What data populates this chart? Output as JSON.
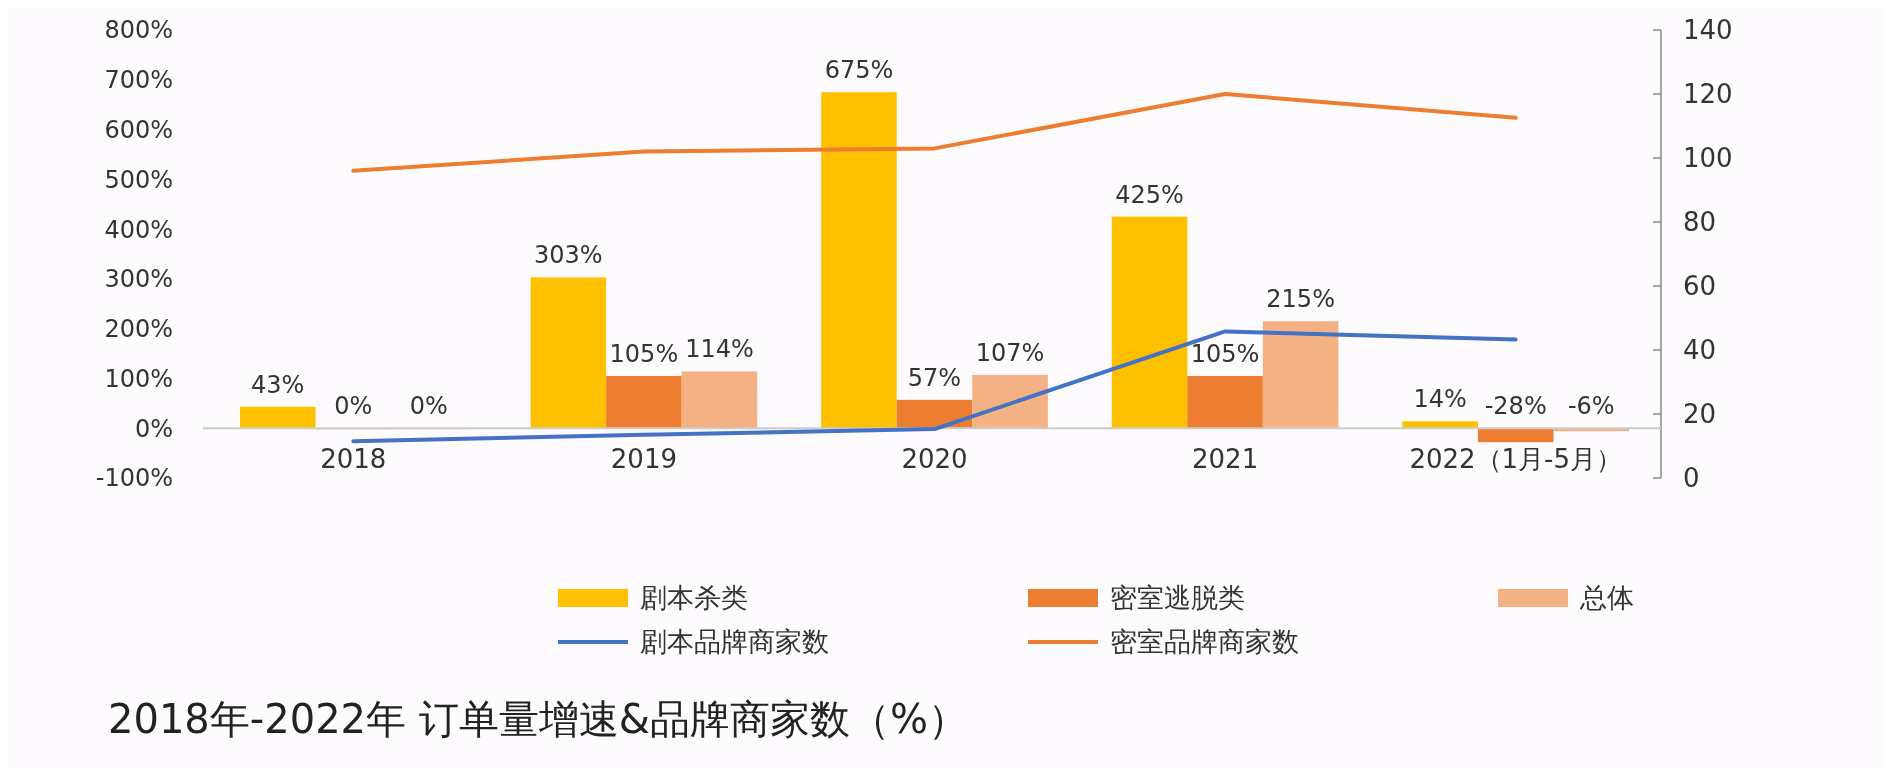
{
  "chart_data": {
    "type": "bar",
    "title": "2018年-2022年 订单量增速&品牌商家数（%）",
    "categories": [
      "2018",
      "2019",
      "2020",
      "2021",
      "2022（1月-5月）"
    ],
    "series": [
      {
        "name": "剧本杀类",
        "color": "#ffc000",
        "values": [
          43,
          303,
          675,
          425,
          14
        ],
        "value_labels": [
          "43%",
          "303%",
          "675%",
          "425%",
          "14%"
        ]
      },
      {
        "name": "密室逃脱类",
        "color": "#ed7d31",
        "values": [
          0,
          105,
          57,
          105,
          -28
        ],
        "value_labels": [
          "0%",
          "105%",
          "57%",
          "105%",
          "-28%"
        ]
      },
      {
        "name": "总体",
        "color": "#f4b183",
        "values": [
          0,
          114,
          107,
          215,
          -6
        ],
        "value_labels": [
          "0%",
          "114%",
          "107%",
          "215%",
          "-6%"
        ]
      },
      {
        "name": "剧本品牌商家数",
        "type": "line",
        "axis": "y2",
        "color": "#4472c4",
        "values": [
          11.5,
          13.5,
          15.3,
          45.8,
          43.3
        ]
      },
      {
        "name": "密室品牌商家数",
        "type": "line",
        "axis": "y2",
        "color": "#ed7d31",
        "values": [
          96,
          102,
          103,
          120,
          112.6
        ]
      }
    ],
    "ylim": [
      -100,
      800
    ],
    "yticks": [
      {
        "value": -100,
        "label": "-100%"
      },
      {
        "value": 0,
        "label": "0%"
      },
      {
        "value": 100,
        "label": "100%"
      },
      {
        "value": 200,
        "label": "200%"
      },
      {
        "value": 300,
        "label": "300%"
      },
      {
        "value": 400,
        "label": "400%"
      },
      {
        "value": 500,
        "label": "500%"
      },
      {
        "value": 600,
        "label": "600%"
      },
      {
        "value": 700,
        "label": "700%"
      },
      {
        "value": 800,
        "label": "800%"
      }
    ],
    "y2lim": [
      0,
      140
    ],
    "y2ticks": [
      0,
      20,
      40,
      60,
      80,
      100,
      120,
      140
    ],
    "legend": "bottom",
    "grid": false,
    "marker": "none"
  }
}
